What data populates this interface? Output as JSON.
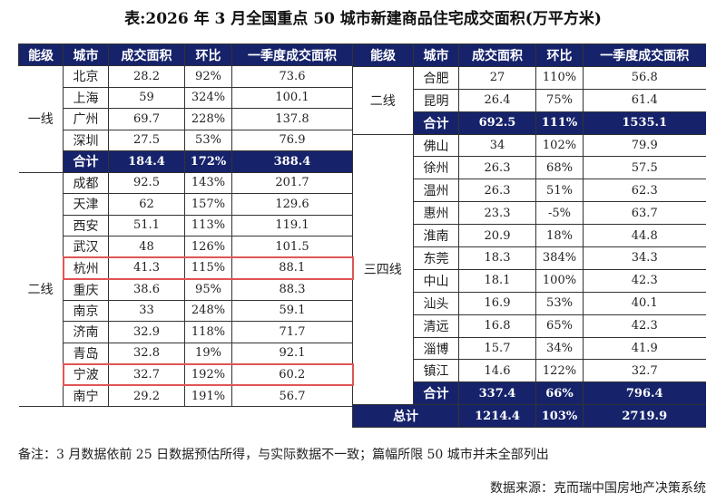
{
  "title": "表:2026 年 3 月全国重点 50 城市新建商品住宅成交面积(万平方米)",
  "headers": [
    "能级",
    "城市",
    "成交面积",
    "环比",
    "一季度成交面积"
  ],
  "colors": {
    "header_bg": "#16236b",
    "highlight_border": "#e05555"
  },
  "left_table": {
    "groups": [
      {
        "level": "一线",
        "rows": [
          {
            "city": "北京",
            "area": "28.2",
            "mom": "92%",
            "q1": "73.6"
          },
          {
            "city": "上海",
            "area": "59",
            "mom": "324%",
            "q1": "100.1"
          },
          {
            "city": "广州",
            "area": "69.7",
            "mom": "228%",
            "q1": "137.8"
          },
          {
            "city": "深圳",
            "area": "27.5",
            "mom": "53%",
            "q1": "76.9"
          },
          {
            "city": "合计",
            "area": "184.4",
            "mom": "172%",
            "q1": "388.4",
            "total": true
          }
        ]
      },
      {
        "level": "二线",
        "rows": [
          {
            "city": "成都",
            "area": "92.5",
            "mom": "143%",
            "q1": "201.7"
          },
          {
            "city": "天津",
            "area": "62",
            "mom": "157%",
            "q1": "129.6"
          },
          {
            "city": "西安",
            "area": "51.1",
            "mom": "113%",
            "q1": "119.1"
          },
          {
            "city": "武汉",
            "area": "48",
            "mom": "126%",
            "q1": "101.5"
          },
          {
            "city": "杭州",
            "area": "41.3",
            "mom": "115%",
            "q1": "88.1",
            "highlight": true
          },
          {
            "city": "重庆",
            "area": "38.6",
            "mom": "95%",
            "q1": "88.3"
          },
          {
            "city": "南京",
            "area": "33",
            "mom": "248%",
            "q1": "59.1"
          },
          {
            "city": "济南",
            "area": "32.9",
            "mom": "118%",
            "q1": "71.7"
          },
          {
            "city": "青岛",
            "area": "32.8",
            "mom": "19%",
            "q1": "92.1"
          },
          {
            "city": "宁波",
            "area": "32.7",
            "mom": "192%",
            "q1": "60.2",
            "highlight": true
          },
          {
            "city": "南宁",
            "area": "29.2",
            "mom": "191%",
            "q1": "56.7"
          }
        ]
      }
    ]
  },
  "right_table": {
    "groups": [
      {
        "level": "二线",
        "rows": [
          {
            "city": "合肥",
            "area": "27",
            "mom": "110%",
            "q1": "56.8"
          },
          {
            "city": "昆明",
            "area": "26.4",
            "mom": "75%",
            "q1": "61.4"
          },
          {
            "city": "合计",
            "area": "692.5",
            "mom": "111%",
            "q1": "1535.1",
            "total": true
          }
        ]
      },
      {
        "level": "三四线",
        "rows": [
          {
            "city": "佛山",
            "area": "34",
            "mom": "102%",
            "q1": "79.9"
          },
          {
            "city": "徐州",
            "area": "26.3",
            "mom": "68%",
            "q1": "57.5"
          },
          {
            "city": "温州",
            "area": "26.3",
            "mom": "51%",
            "q1": "62.3"
          },
          {
            "city": "惠州",
            "area": "23.3",
            "mom": "-5%",
            "q1": "63.7"
          },
          {
            "city": "淮南",
            "area": "20.9",
            "mom": "18%",
            "q1": "44.8"
          },
          {
            "city": "东莞",
            "area": "18.3",
            "mom": "384%",
            "q1": "34.3"
          },
          {
            "city": "中山",
            "area": "18.1",
            "mom": "100%",
            "q1": "42.3"
          },
          {
            "city": "汕头",
            "area": "16.9",
            "mom": "53%",
            "q1": "40.1"
          },
          {
            "city": "清远",
            "area": "16.8",
            "mom": "65%",
            "q1": "42.3"
          },
          {
            "city": "淄博",
            "area": "15.7",
            "mom": "34%",
            "q1": "41.9"
          },
          {
            "city": "镇江",
            "area": "14.6",
            "mom": "122%",
            "q1": "32.7"
          },
          {
            "city": "合计",
            "area": "337.4",
            "mom": "66%",
            "q1": "796.4",
            "total": true
          }
        ]
      }
    ],
    "grand_total": {
      "label": "总计",
      "area": "1214.4",
      "mom": "103%",
      "q1": "2719.9"
    }
  },
  "note": "备注：3 月数据依前 25 日数据预估所得，与实际数据不一致；篇幅所限 50 城市并未全部列出",
  "source": "数据来源：克而瑞中国房地产决策系统"
}
